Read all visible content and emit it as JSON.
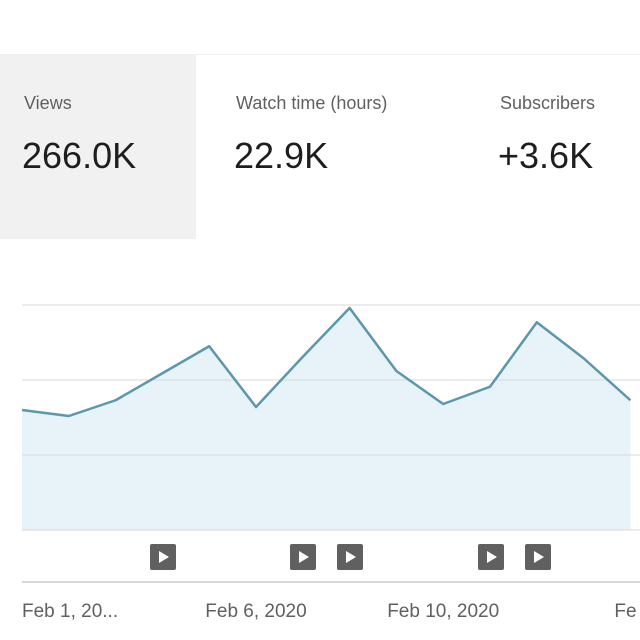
{
  "metrics": [
    {
      "label": "Views",
      "value": "266.0K"
    },
    {
      "label": "Watch time (hours)",
      "value": "22.9K"
    },
    {
      "label": "Subscribers",
      "value": "+3.6K"
    }
  ],
  "chart_data": {
    "type": "line",
    "categories": [
      "Feb 1, 20...",
      null,
      null,
      null,
      null,
      "Feb 6, 2020",
      null,
      null,
      null,
      "Feb 10, 2020",
      null,
      null,
      null,
      "Fe"
    ],
    "series": [
      {
        "color": "#5b97ad",
        "values": [
          1.6,
          1.52,
          1.73,
          2.09,
          2.45,
          1.64,
          2.31,
          2.96,
          2.12,
          1.68,
          1.91,
          2.77,
          2.29,
          1.73
        ]
      }
    ],
    "area_color": "#e7f2f9",
    "ylim": [
      0,
      3
    ],
    "yticks": [
      0,
      1,
      2,
      3
    ],
    "grid": true
  }
}
